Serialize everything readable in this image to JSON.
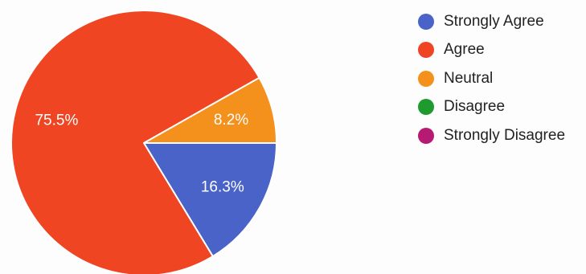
{
  "chart_data": {
    "type": "pie",
    "title": "",
    "legend_position": "right",
    "start_angle_deg": 0,
    "direction": "clockwise",
    "slices": [
      {
        "name": "Strongly Agree",
        "value": 16.3,
        "label": "16.3%",
        "color": "#4a63c9"
      },
      {
        "name": "Agree",
        "value": 75.5,
        "label": "75.5%",
        "color": "#ef4522"
      },
      {
        "name": "Neutral",
        "value": 8.2,
        "label": "8.2%",
        "color": "#f4901c"
      },
      {
        "name": "Disagree",
        "value": 0,
        "label": "",
        "color": "#1f9a2e"
      },
      {
        "name": "Strongly Disagree",
        "value": 0,
        "label": "",
        "color": "#b61a72"
      }
    ]
  }
}
